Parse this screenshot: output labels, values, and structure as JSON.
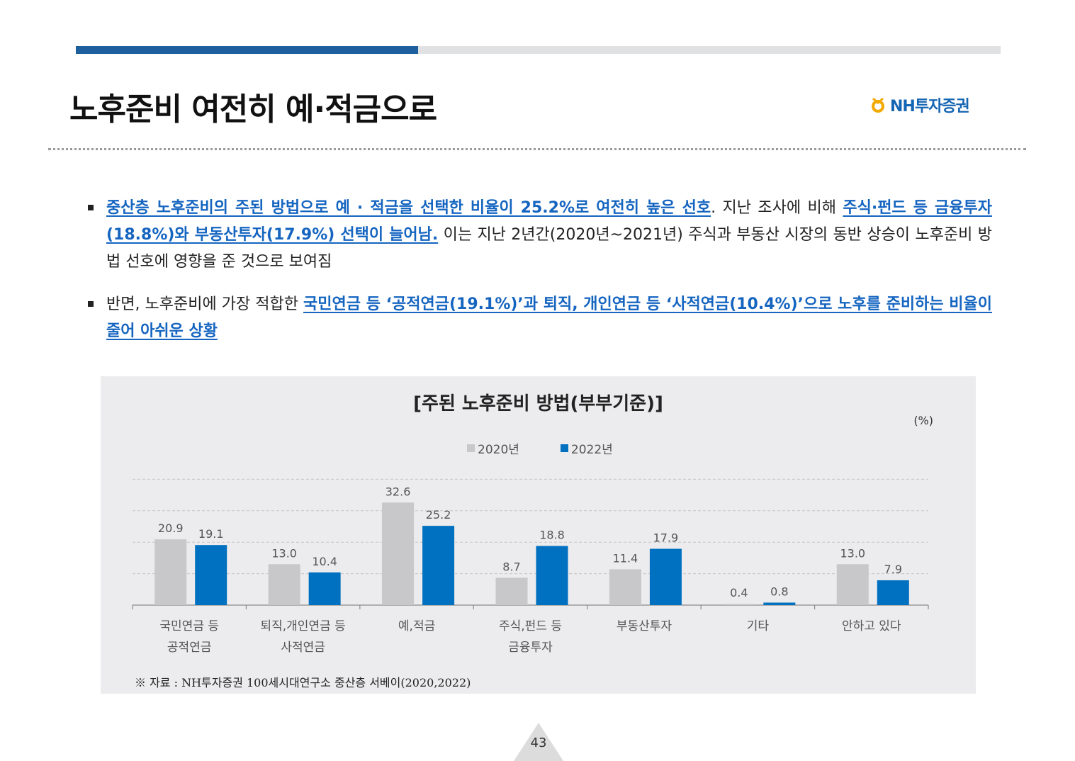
{
  "header": {
    "title": "노후준비 여전히 예·적금으로",
    "logo_text": "NH투자증권"
  },
  "bullets": [
    {
      "segments": [
        {
          "text": "중산층 노후준비의 주된 방법으로 예 · 적금을 선택한 비율이 25.2%로 여전히 높은 선호",
          "highlight": true
        },
        {
          "text": ". 지난 조사에 비해 ",
          "highlight": false
        },
        {
          "text": "주식·펀드 등 금융투자(18.8%)와 부동산투자(17.9%) 선택이 늘어남.",
          "highlight": true
        },
        {
          "text": " 이는 지난 2년간(2020년~2021년) 주식과 부동산 시장의 동반 상승이 노후준비 방법 선호에 영향을 준 것으로 보여짐",
          "highlight": false
        }
      ]
    },
    {
      "segments": [
        {
          "text": "반면, 노후준비에 가장 적합한 ",
          "highlight": false
        },
        {
          "text": "국민연금 등 ‘공적연금(19.1%)’과 퇴직, 개인연금 등 ‘사적연금(10.4%)’으로 노후를 준비하는 비율이 줄어 아쉬운 상황",
          "highlight": true
        }
      ]
    }
  ],
  "chart_data": {
    "type": "bar",
    "title": "[주된 노후준비 방법(부부기준)]",
    "unit": "(%)",
    "categories": [
      [
        "국민연금 등",
        "공적연금"
      ],
      [
        "퇴직,개인연금 등",
        "사적연금"
      ],
      [
        "예,적금"
      ],
      [
        "주식,펀드 등",
        "금융투자"
      ],
      [
        "부동산투자"
      ],
      [
        "기타"
      ],
      [
        "안하고 있다"
      ]
    ],
    "series": [
      {
        "name": "2020년",
        "color": "#c8c8ca",
        "values": [
          20.9,
          13.0,
          32.6,
          8.7,
          11.4,
          0.4,
          13.0
        ]
      },
      {
        "name": "2022년",
        "color": "#0070c0",
        "values": [
          19.1,
          10.4,
          25.2,
          18.8,
          17.9,
          0.8,
          7.9
        ]
      }
    ],
    "ylim": [
      0,
      40
    ],
    "grid": true,
    "legend_position": "top-center"
  },
  "source": "※ 자료 : NH투자증권 100세시대연구소 중산층 서베이(2020,2022)",
  "page_number": "43"
}
